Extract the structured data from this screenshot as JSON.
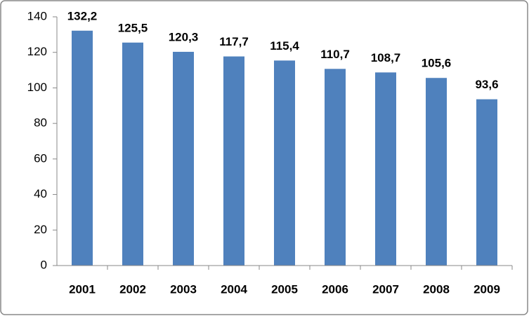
{
  "chart_data": {
    "type": "bar",
    "categories": [
      "2001",
      "2002",
      "2003",
      "2004",
      "2005",
      "2006",
      "2007",
      "2008",
      "2009"
    ],
    "values": [
      132.2,
      125.5,
      120.3,
      117.7,
      115.4,
      110.7,
      108.7,
      105.6,
      93.6
    ],
    "value_labels": [
      "132,2",
      "125,5",
      "120,3",
      "117,7",
      "115,4",
      "110,7",
      "108,7",
      "105,6",
      "93,6"
    ],
    "color": "#4f81bd",
    "ylim": [
      0,
      140
    ],
    "yticks": [
      0,
      20,
      40,
      60,
      80,
      100,
      120,
      140
    ],
    "grid": false
  }
}
